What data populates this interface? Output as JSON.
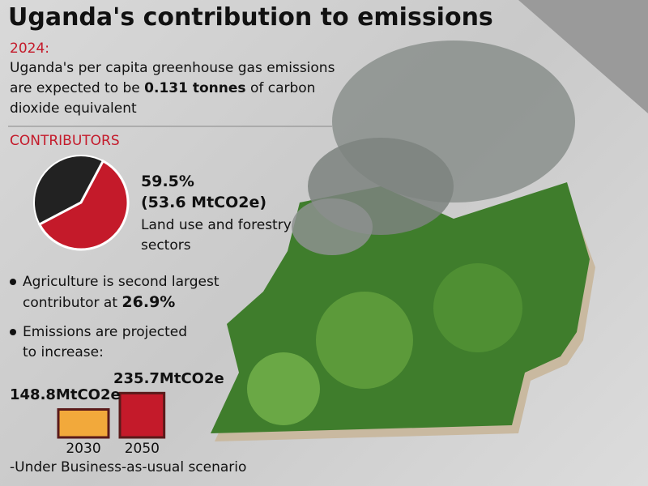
{
  "title": "Uganda's contribution to emissions",
  "intro": {
    "year": "2024:",
    "text_before": "Uganda's per capita greenhouse gas emissions are expected to be",
    "highlight": "0.131 tonnes",
    "text_after": "of carbon dioxide equivalent"
  },
  "contributors": {
    "heading": "CONTRIBUTORS",
    "pie": {
      "value": 59.5,
      "value_label": "59.5%",
      "amount_label": "(53.6 MtCO2e)",
      "label": "Land use  and forestry sectors",
      "color": "#c41a2a",
      "rest_color": "#222222"
    }
  },
  "bullets": [
    {
      "text": "Agriculture is second largest contributor at",
      "highlight": "26.9%"
    },
    {
      "text": "Emissions are projected to increase:"
    }
  ],
  "projection": {
    "categories": [
      "2030",
      "2050"
    ],
    "values": [
      148.8,
      235.7
    ],
    "value_labels": [
      "148.8MtCO2e",
      "235.7MtCO2e"
    ],
    "colors": [
      "#f2a93b",
      "#c41a2a"
    ]
  },
  "note": "-Under Business-as-usual scenario"
}
